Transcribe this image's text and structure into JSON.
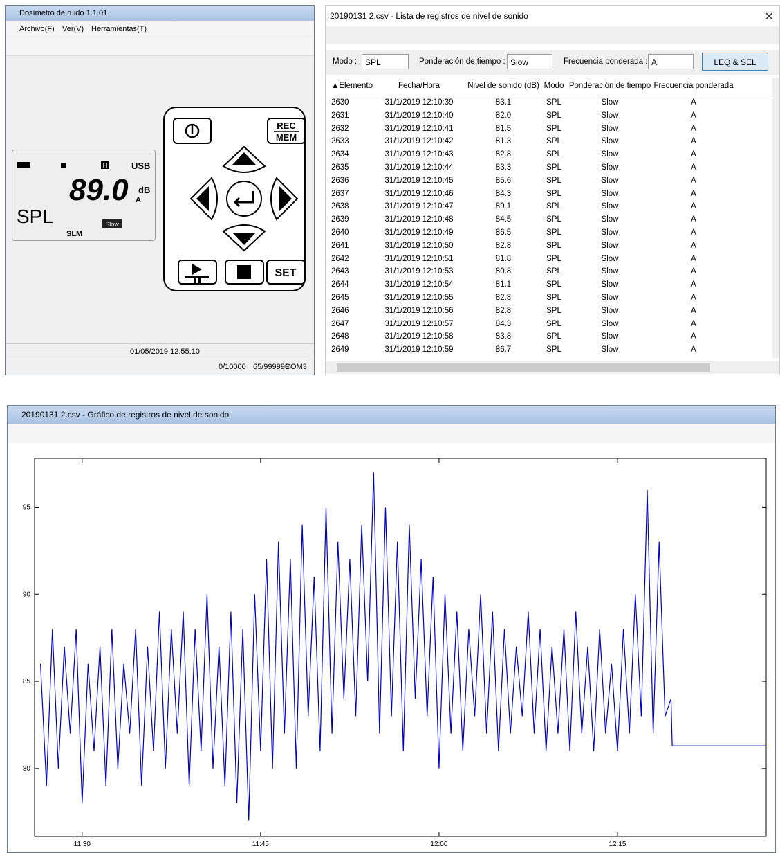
{
  "left_window": {
    "title": "Dosímetro de ruido 1.1.01",
    "menu": [
      "Archivo(F)",
      "Ver(V)",
      "Herramientas(T)"
    ],
    "lcd": {
      "hold": "H",
      "usb": "USB",
      "reading": "89.0",
      "unit": "dB",
      "weighting": "A",
      "mode": "SPL",
      "slm": "SLM",
      "response": "Slow"
    },
    "keypad": {
      "rec": "REC",
      "mem": "MEM",
      "set": "SET"
    },
    "status": {
      "datetime": "01/05/2019 12:55:10",
      "memory": "0/10000",
      "records": "65/999999",
      "port": "COM3"
    }
  },
  "table_window": {
    "title": "20190131 2.csv - Lista de registros de nivel de sonido",
    "mode_label": "Modo :",
    "mode_value": "SPL",
    "time_label": "Ponderación de tiempo :",
    "time_value": "Slow",
    "freq_label": "Frecuencia ponderada :",
    "freq_value": "A",
    "button": "LEQ & SEL",
    "headers": [
      "▲Elemento",
      "Fecha/Hora",
      "Nivel de sonido (dB)",
      "Modo",
      "Ponderación de tiempo",
      "Frecuencia ponderada"
    ],
    "rows": [
      [
        "2630",
        "31/1/2019 12:10:39",
        "83.1",
        "SPL",
        "Slow",
        "A"
      ],
      [
        "2631",
        "31/1/2019 12:10:40",
        "82.0",
        "SPL",
        "Slow",
        "A"
      ],
      [
        "2632",
        "31/1/2019 12:10:41",
        "81.5",
        "SPL",
        "Slow",
        "A"
      ],
      [
        "2633",
        "31/1/2019 12:10:42",
        "81.3",
        "SPL",
        "Slow",
        "A"
      ],
      [
        "2634",
        "31/1/2019 12:10:43",
        "82.8",
        "SPL",
        "Slow",
        "A"
      ],
      [
        "2635",
        "31/1/2019 12:10:44",
        "83.3",
        "SPL",
        "Slow",
        "A"
      ],
      [
        "2636",
        "31/1/2019 12:10:45",
        "85.6",
        "SPL",
        "Slow",
        "A"
      ],
      [
        "2637",
        "31/1/2019 12:10:46",
        "84.3",
        "SPL",
        "Slow",
        "A"
      ],
      [
        "2638",
        "31/1/2019 12:10:47",
        "89.1",
        "SPL",
        "Slow",
        "A"
      ],
      [
        "2639",
        "31/1/2019 12:10:48",
        "84.5",
        "SPL",
        "Slow",
        "A"
      ],
      [
        "2640",
        "31/1/2019 12:10:49",
        "86.5",
        "SPL",
        "Slow",
        "A"
      ],
      [
        "2641",
        "31/1/2019 12:10:50",
        "82.8",
        "SPL",
        "Slow",
        "A"
      ],
      [
        "2642",
        "31/1/2019 12:10:51",
        "81.8",
        "SPL",
        "Slow",
        "A"
      ],
      [
        "2643",
        "31/1/2019 12:10:53",
        "80.8",
        "SPL",
        "Slow",
        "A"
      ],
      [
        "2644",
        "31/1/2019 12:10:54",
        "81.1",
        "SPL",
        "Slow",
        "A"
      ],
      [
        "2645",
        "31/1/2019 12:10:55",
        "82.8",
        "SPL",
        "Slow",
        "A"
      ],
      [
        "2646",
        "31/1/2019 12:10:56",
        "82.8",
        "SPL",
        "Slow",
        "A"
      ],
      [
        "2647",
        "31/1/2019 12:10:57",
        "84.3",
        "SPL",
        "Slow",
        "A"
      ],
      [
        "2648",
        "31/1/2019 12:10:58",
        "83.8",
        "SPL",
        "Slow",
        "A"
      ],
      [
        "2649",
        "31/1/2019 12:10:59",
        "86.7",
        "SPL",
        "Slow",
        "A"
      ]
    ]
  },
  "chart_window": {
    "title": "20190131 2.csv - Gráfico de registros de nivel de sonido"
  },
  "chart_data": {
    "type": "line",
    "color": "#0000cc",
    "x": [
      686.5,
      687,
      687.5,
      688,
      688.5,
      689,
      689.5,
      690,
      690.5,
      691,
      691.5,
      692,
      692.5,
      693,
      693.5,
      694,
      694.5,
      695,
      695.5,
      696,
      696.5,
      697,
      697.5,
      698,
      698.5,
      699,
      699.5,
      700,
      700.5,
      701,
      701.5,
      702,
      702.5,
      703,
      703.5,
      704,
      704.5,
      705,
      705.5,
      706,
      706.5,
      707,
      707.5,
      708,
      708.5,
      709,
      709.5,
      710,
      710.5,
      711,
      711.5,
      712,
      712.5,
      713,
      713.5,
      714,
      714.5,
      715,
      715.5,
      716,
      716.5,
      717,
      717.5,
      718,
      718.5,
      719,
      719.5,
      720,
      720.5,
      721,
      721.5,
      722,
      722.5,
      723,
      723.5,
      724,
      724.5,
      725,
      725.5,
      726,
      726.5,
      727,
      727.5,
      728,
      728.5,
      729,
      729.5,
      730,
      730.5,
      731,
      731.5,
      732,
      732.5,
      733,
      733.5,
      734,
      734.5,
      735,
      735.5,
      736,
      736.5,
      737,
      737.5,
      738,
      738.5,
      739,
      739.5,
      739.6,
      747.5
    ],
    "values": [
      86,
      79,
      88,
      80,
      87,
      82,
      88,
      78,
      86,
      81,
      87,
      79,
      88,
      80,
      86,
      82,
      88,
      79,
      87,
      81,
      89,
      80,
      88,
      82,
      89,
      79,
      88,
      81,
      90,
      80,
      87,
      79,
      89,
      78,
      88,
      77,
      90,
      81,
      92,
      80,
      93,
      82,
      92,
      80,
      94,
      83,
      91,
      81,
      95,
      82,
      93,
      84,
      92,
      83,
      94,
      85,
      97,
      82,
      95,
      83,
      93,
      81,
      94,
      84,
      92,
      83,
      91,
      80,
      90,
      82,
      89,
      81,
      88,
      83,
      90,
      82,
      89,
      81,
      88,
      82,
      87,
      83,
      89,
      82,
      88,
      81,
      87,
      82,
      88,
      81,
      89,
      82,
      87,
      81,
      88,
      82,
      86,
      81,
      88,
      82,
      90,
      83,
      96,
      82,
      93,
      83,
      84,
      81.3,
      81.3
    ],
    "xlim": [
      686,
      747.5
    ],
    "ylim": [
      76.1,
      97.8
    ],
    "xticks": [
      {
        "value": 690,
        "label": "11:30"
      },
      {
        "value": 705,
        "label": "11:45"
      },
      {
        "value": 720,
        "label": "12:00"
      },
      {
        "value": 735,
        "label": "12:15"
      }
    ],
    "yticks": [
      80,
      85,
      90,
      95
    ]
  }
}
